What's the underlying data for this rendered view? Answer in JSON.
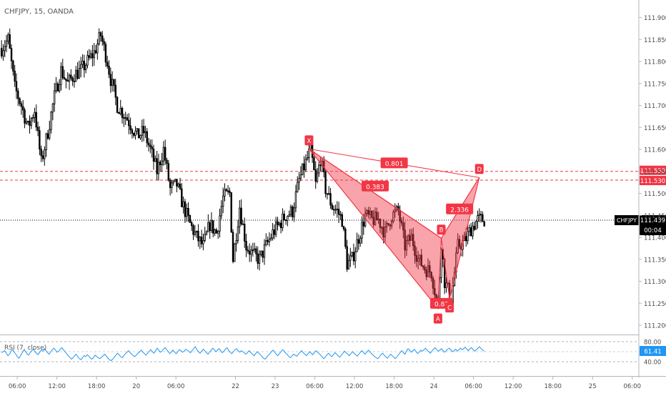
{
  "header": {
    "title": "CHFJPY, 15, OANDA"
  },
  "colors": {
    "up": "#ffffff",
    "down": "#000000",
    "wick": "#000000",
    "pattern": "#f23645",
    "pattern_fill": "#f23645",
    "rsi": "#2196f3",
    "axis_text": "#4a4a4a",
    "grid": "#e0e3eb",
    "price_tag_bg": "#000000"
  },
  "chart_data": [
    {
      "type": "candlestick",
      "title": "CHFJPY, 15, OANDA",
      "ylim": [
        111.2,
        111.95
      ],
      "y_ticks": [
        "111.900",
        "111.850",
        "111.800",
        "111.750",
        "111.700",
        "111.650",
        "111.600",
        "111.550",
        "111.500",
        "111.450",
        "111.400",
        "111.350",
        "111.300",
        "111.250",
        "111.200"
      ],
      "y_tick_values": [
        111.9,
        111.85,
        111.8,
        111.75,
        111.7,
        111.65,
        111.6,
        111.55,
        111.5,
        111.45,
        111.4,
        111.35,
        111.3,
        111.25,
        111.2
      ],
      "x_ticks": [
        "06:00",
        "12:00",
        "18:00",
        "20",
        "06:00",
        "22",
        "23",
        "06:00",
        "12:00",
        "18:00",
        "24",
        "06:00",
        "12:00",
        "18:00",
        "25",
        "06:00"
      ],
      "x_tick_bars": [
        10,
        34,
        58,
        82,
        106,
        142,
        166,
        190,
        214,
        238,
        262,
        286,
        310,
        334,
        358,
        382
      ],
      "bars_total": 386,
      "last_bar": 292,
      "candle_anchors": [
        [
          0,
          111.83
        ],
        [
          4,
          111.85
        ],
        [
          8,
          111.74
        ],
        [
          12,
          111.7
        ],
        [
          16,
          111.65
        ],
        [
          20,
          111.69
        ],
        [
          24,
          111.57
        ],
        [
          28,
          111.64
        ],
        [
          32,
          111.72
        ],
        [
          36,
          111.78
        ],
        [
          40,
          111.75
        ],
        [
          44,
          111.77
        ],
        [
          48,
          111.78
        ],
        [
          52,
          111.8
        ],
        [
          56,
          111.82
        ],
        [
          60,
          111.86
        ],
        [
          64,
          111.8
        ],
        [
          66,
          111.76
        ],
        [
          70,
          111.7
        ],
        [
          76,
          111.67
        ],
        [
          82,
          111.63
        ],
        [
          86,
          111.64
        ],
        [
          90,
          111.6
        ],
        [
          94,
          111.55
        ],
        [
          98,
          111.6
        ],
        [
          102,
          111.51
        ],
        [
          106,
          111.52
        ],
        [
          110,
          111.47
        ],
        [
          114,
          111.43
        ],
        [
          118,
          111.4
        ],
        [
          122,
          111.38
        ],
        [
          126,
          111.43
        ],
        [
          130,
          111.41
        ],
        [
          134,
          111.49
        ],
        [
          138,
          111.5
        ],
        [
          140,
          111.35
        ],
        [
          144,
          111.47
        ],
        [
          148,
          111.38
        ],
        [
          152,
          111.36
        ],
        [
          156,
          111.35
        ],
        [
          160,
          111.38
        ],
        [
          164,
          111.41
        ],
        [
          168,
          111.43
        ],
        [
          172,
          111.45
        ],
        [
          176,
          111.46
        ],
        [
          180,
          111.53
        ],
        [
          184,
          111.57
        ],
        [
          187,
          111.6
        ],
        [
          190,
          111.52
        ],
        [
          193,
          111.58
        ],
        [
          196,
          111.51
        ],
        [
          200,
          111.47
        ],
        [
          203,
          111.46
        ],
        [
          206,
          111.44
        ],
        [
          209,
          111.34
        ],
        [
          212,
          111.35
        ],
        [
          216,
          111.4
        ],
        [
          220,
          111.45
        ],
        [
          224,
          111.44
        ],
        [
          228,
          111.44
        ],
        [
          232,
          111.41
        ],
        [
          236,
          111.45
        ],
        [
          240,
          111.46
        ],
        [
          244,
          111.38
        ],
        [
          248,
          111.4
        ],
        [
          252,
          111.35
        ],
        [
          256,
          111.33
        ],
        [
          260,
          111.32
        ],
        [
          264,
          111.24
        ],
        [
          266,
          111.39
        ],
        [
          268,
          111.3
        ],
        [
          272,
          111.26
        ],
        [
          276,
          111.38
        ],
        [
          280,
          111.39
        ],
        [
          284,
          111.42
        ],
        [
          288,
          111.44
        ],
        [
          292,
          111.44
        ]
      ]
    },
    {
      "type": "pattern",
      "name": "Cypher / XABCD pattern",
      "points": [
        {
          "label": "X",
          "bar": 186,
          "price": 111.601
        },
        {
          "label": "A",
          "bar": 264,
          "price": 111.238
        },
        {
          "label": "B",
          "bar": 266,
          "price": 111.398
        },
        {
          "label": "C",
          "bar": 271,
          "price": 111.26
        },
        {
          "label": "D",
          "bar": 289,
          "price": 111.536
        }
      ],
      "ratios": [
        {
          "label": "0.801",
          "between": "X-D"
        },
        {
          "label": "0.383",
          "between": "X-B"
        },
        {
          "label": "2.336",
          "between": "B-D"
        },
        {
          "label": "0.81",
          "between": "A-C"
        }
      ],
      "levels": [
        {
          "price": 111.55,
          "label": "111.550"
        },
        {
          "price": 111.53,
          "label": "111.530"
        }
      ],
      "current": {
        "symbol": "CHFJPY",
        "price": 111.439,
        "label": "111.439",
        "countdown": "00:04"
      }
    },
    {
      "type": "line",
      "title": "RSI (7, close)",
      "value_label": "61.41",
      "value": 61.41,
      "ylim": [
        20,
        90
      ],
      "y_ticks": [
        "80.00",
        "40.00"
      ],
      "y_tick_values": [
        80,
        40
      ],
      "mid_level": 60,
      "series": [
        {
          "values": [
            58,
            60,
            62,
            57,
            52,
            55,
            61,
            64,
            59,
            55,
            50,
            47,
            52,
            58,
            63,
            61,
            56,
            53,
            58,
            62,
            65,
            60,
            57,
            54,
            59,
            63,
            61,
            66,
            62,
            58,
            55,
            60,
            64,
            67,
            63,
            59,
            61,
            65,
            68,
            64,
            60,
            56,
            52,
            49,
            45,
            48,
            52,
            55,
            50,
            46,
            44,
            48,
            52,
            50,
            54,
            51,
            47,
            45,
            49,
            53,
            50,
            48,
            46,
            49,
            52,
            55,
            51,
            47,
            44,
            42,
            45,
            49,
            53,
            57,
            54,
            50,
            48,
            52,
            56,
            59,
            62,
            58,
            55,
            52,
            50,
            54,
            57,
            60,
            63,
            59,
            56,
            53,
            57,
            61,
            64,
            60,
            57,
            62,
            67,
            63,
            59,
            61,
            65,
            68,
            64,
            60,
            56,
            60,
            63,
            59,
            56,
            60,
            64,
            62,
            59,
            61,
            65,
            63,
            60,
            58,
            62,
            66,
            70,
            64,
            60,
            57,
            61,
            65,
            62,
            58,
            55,
            59,
            63,
            67,
            64,
            60,
            63,
            66,
            62,
            58,
            61,
            65,
            68,
            63,
            59,
            56,
            60,
            64,
            66,
            62,
            59,
            62,
            60,
            57,
            55,
            59,
            62,
            58,
            55,
            52,
            56,
            60,
            57,
            54,
            50,
            47,
            45,
            49,
            53,
            56,
            60,
            63,
            59,
            55,
            52,
            56,
            60,
            64,
            61,
            57,
            54,
            50,
            48,
            52,
            55,
            53,
            51,
            55,
            59,
            62,
            58,
            55,
            52,
            56,
            60,
            57,
            54,
            58,
            62,
            59,
            56,
            53,
            49,
            46,
            50,
            54,
            57,
            53,
            50,
            54,
            58,
            55,
            52,
            49,
            53,
            57,
            61,
            58,
            55,
            52,
            56,
            60,
            57,
            54,
            51,
            55,
            59,
            62,
            58,
            55,
            59,
            63,
            60,
            56,
            53,
            50,
            48,
            46,
            50,
            54,
            57,
            53,
            50,
            47,
            51,
            55,
            52,
            49,
            46,
            50,
            54,
            58,
            62,
            58,
            55,
            61,
            66,
            63,
            59,
            62,
            65,
            60,
            56,
            59,
            63,
            61,
            64,
            67,
            63,
            60,
            57,
            61,
            65,
            68,
            64,
            61,
            63,
            66,
            62,
            59,
            62,
            65,
            67,
            63,
            60,
            62,
            65,
            61,
            64,
            67,
            64,
            66,
            69,
            65,
            62,
            66,
            68,
            64,
            61,
            64,
            67,
            70,
            66,
            63,
            61
          ]
        }
      ]
    }
  ]
}
